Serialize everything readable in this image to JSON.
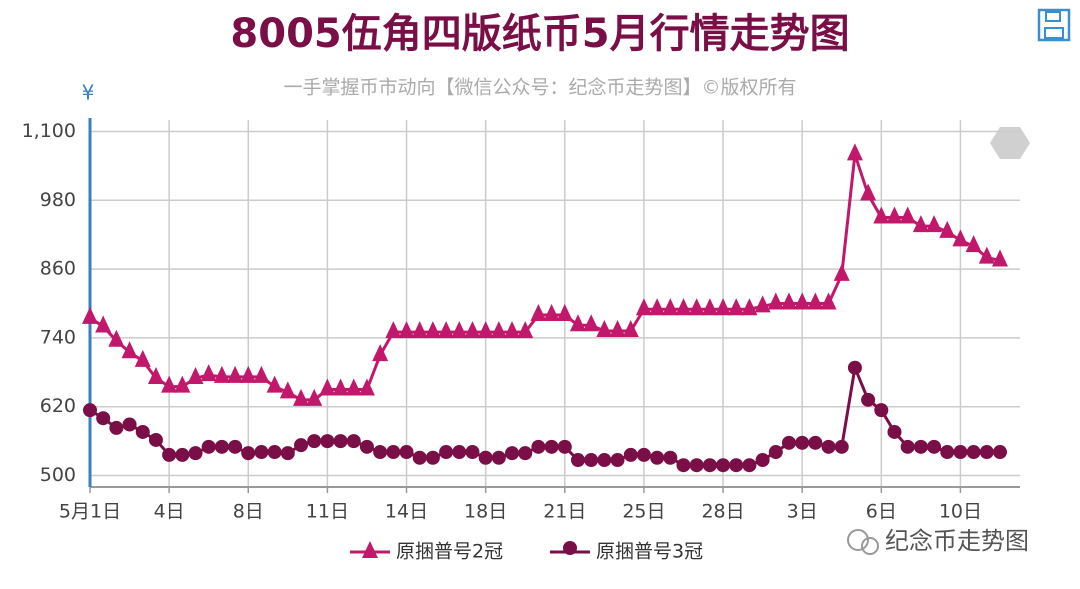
{
  "chart_data": {
    "type": "line",
    "title": "8005伍角四版纸币5月行情走势图",
    "subtitle": "一手掌握币市动向【微信公众号：纪念币走势图】©版权所有",
    "y_unit": "¥",
    "watermark": "纪念币走势图",
    "categories": [
      "5月1日",
      null,
      null,
      null,
      null,
      null,
      "4日",
      null,
      null,
      null,
      null,
      null,
      "8日",
      null,
      null,
      null,
      null,
      null,
      "11日",
      null,
      null,
      null,
      null,
      null,
      "14日",
      null,
      null,
      null,
      null,
      null,
      "18日",
      null,
      null,
      null,
      null,
      null,
      "21日",
      null,
      null,
      null,
      null,
      null,
      "25日",
      null,
      null,
      null,
      null,
      null,
      "28日",
      null,
      null,
      null,
      null,
      null,
      "3日",
      null,
      null,
      null,
      null,
      null,
      "6日",
      null,
      null,
      null,
      null,
      null,
      "10日",
      null,
      null,
      null
    ],
    "series": [
      {
        "name": "原捆普号2冠",
        "color": "#c2186b",
        "marker": "triangle",
        "values": [
          775,
          760,
          735,
          715,
          700,
          670,
          655,
          655,
          670,
          675,
          672,
          672,
          672,
          672,
          655,
          645,
          632,
          632,
          650,
          650,
          650,
          650,
          710,
          750,
          750,
          750,
          750,
          750,
          750,
          750,
          750,
          750,
          750,
          750,
          780,
          780,
          780,
          762,
          762,
          752,
          752,
          752,
          790,
          790,
          790,
          790,
          790,
          790,
          790,
          790,
          790,
          795,
          800,
          800,
          800,
          800,
          800,
          850,
          1060,
          990,
          950,
          950,
          950,
          935,
          935,
          925,
          910,
          900,
          880,
          875
        ]
      },
      {
        "name": "原捆普号3冠",
        "color": "#7a0e46",
        "marker": "circle",
        "values": [
          614,
          600,
          583,
          589,
          576,
          562,
          536,
          536,
          539,
          550,
          550,
          550,
          539,
          541,
          541,
          539,
          553,
          560,
          560,
          560,
          560,
          550,
          541,
          541,
          541,
          531,
          531,
          541,
          541,
          541,
          531,
          531,
          539,
          539,
          550,
          550,
          550,
          527,
          527,
          527,
          527,
          536,
          536,
          531,
          531,
          518,
          518,
          518,
          518,
          518,
          518,
          527,
          541,
          557,
          557,
          557,
          550,
          550,
          688,
          632,
          614,
          576,
          550,
          550,
          550,
          541,
          541,
          541,
          541,
          541
        ]
      }
    ],
    "ylim": [
      480,
      1120
    ],
    "yticks": [
      500,
      620,
      740,
      860,
      980,
      {
        "value": 1100,
        "label": "1,100"
      }
    ],
    "grid": true
  }
}
